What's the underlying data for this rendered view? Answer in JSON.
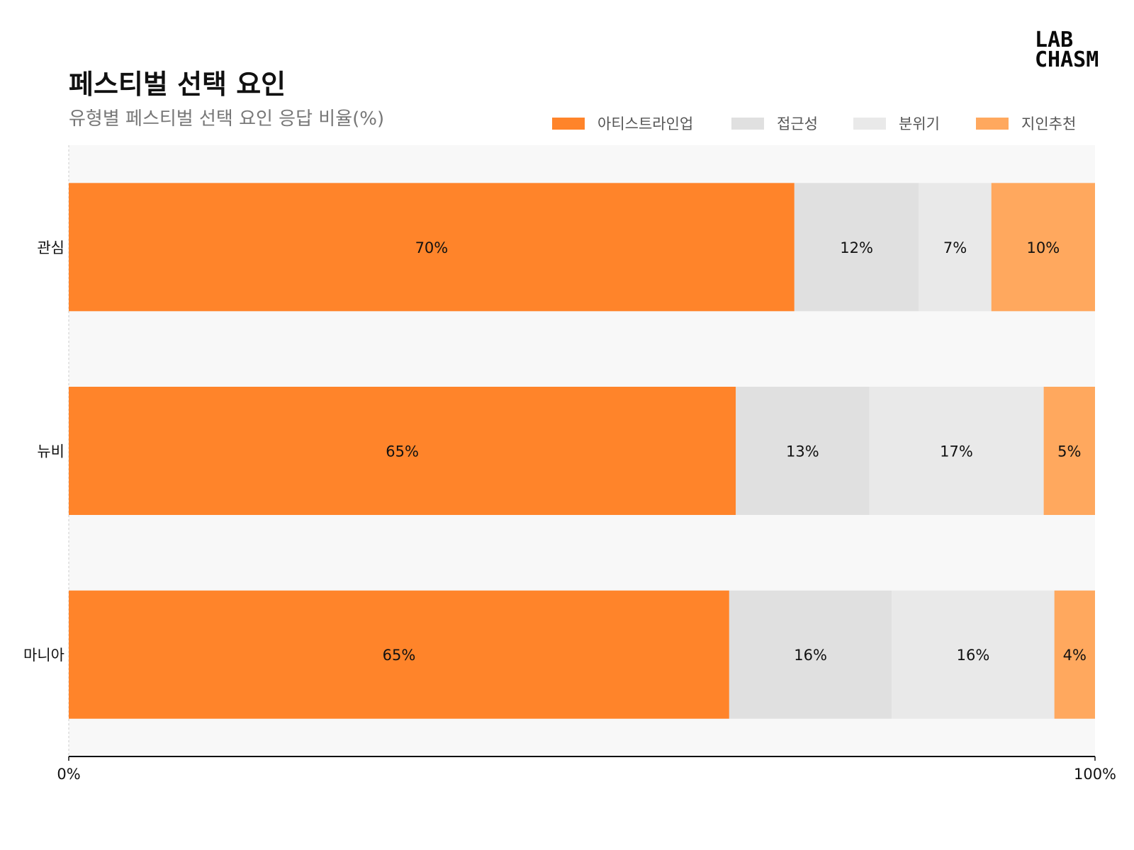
{
  "chart_data": {
    "type": "bar",
    "orientation": "horizontal",
    "stacked": true,
    "normalized": true,
    "title": "페스티벌 선택 요인",
    "subtitle": "유형별 페스티벌 선택 요인 응답 비율(%)",
    "categories": [
      "관심",
      "뉴비",
      "마니아"
    ],
    "series": [
      {
        "name": "아티스트라인업",
        "values": [
          70,
          65,
          65
        ],
        "color": "#FF842A"
      },
      {
        "name": "접근성",
        "values": [
          12,
          13,
          16
        ],
        "color": "#E0E0E0"
      },
      {
        "name": "분위기",
        "values": [
          7,
          17,
          16
        ],
        "color": "#E9E9E9"
      },
      {
        "name": "지인추천",
        "values": [
          10,
          5,
          4
        ],
        "color": "#FFA85E"
      }
    ],
    "xlim": [
      0,
      100
    ],
    "x_ticks": [
      "0%",
      "100%"
    ],
    "legend_position": "top-right",
    "grid": false
  },
  "logo": {
    "line1": "LAB",
    "line2": "CHASM"
  },
  "colors": {
    "background": "#FFFFFF",
    "plot_background": "#F8F8F8",
    "axis": "#111111"
  }
}
